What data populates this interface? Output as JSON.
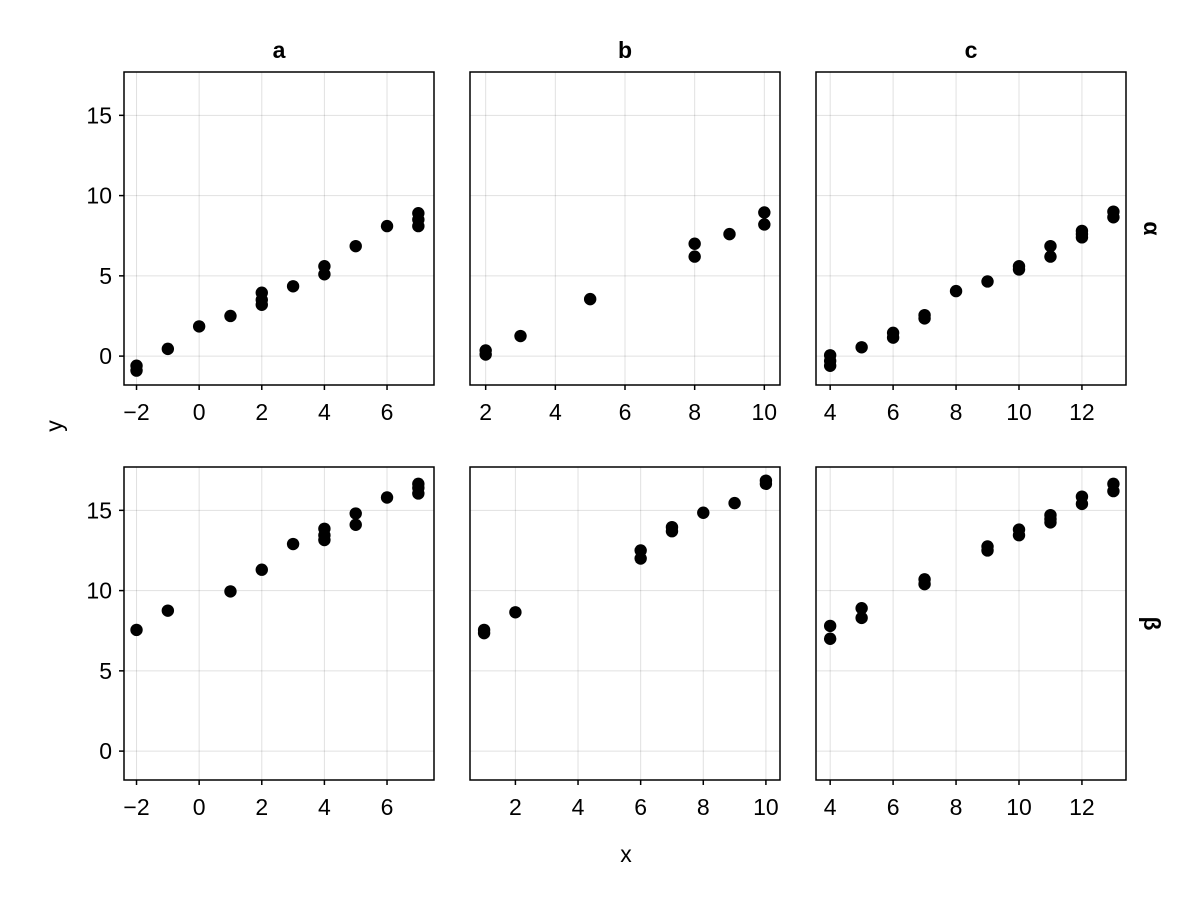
{
  "chart_data": {
    "type": "scatter",
    "xlabel": "x",
    "ylabel": "y",
    "column_titles": [
      "a",
      "b",
      "c"
    ],
    "row_titles": [
      "α",
      "β"
    ],
    "ylim": [
      -1.8,
      17.7
    ],
    "yticks": [
      0,
      5,
      10,
      15
    ],
    "grid": true,
    "point_color": "#000000",
    "panels": [
      {
        "row": "α",
        "col": "a",
        "xlim": [
          -2.4,
          7.5
        ],
        "xticks": [
          -2,
          0,
          2,
          4,
          6
        ],
        "points": [
          [
            -2,
            -0.6
          ],
          [
            -2,
            -0.9
          ],
          [
            -1,
            0.45
          ],
          [
            0,
            1.85
          ],
          [
            1,
            2.5
          ],
          [
            2,
            3.2
          ],
          [
            2,
            3.5
          ],
          [
            2,
            3.95
          ],
          [
            3,
            4.35
          ],
          [
            4,
            5.1
          ],
          [
            4,
            5.6
          ],
          [
            5,
            6.85
          ],
          [
            6,
            8.1
          ],
          [
            7,
            8.1
          ],
          [
            7,
            8.5
          ],
          [
            7,
            8.9
          ]
        ]
      },
      {
        "row": "α",
        "col": "b",
        "xlim": [
          1.55,
          10.45
        ],
        "xticks": [
          2,
          4,
          6,
          8,
          10
        ],
        "points": [
          [
            2,
            0.1
          ],
          [
            2,
            0.35
          ],
          [
            3,
            1.25
          ],
          [
            5,
            3.55
          ],
          [
            8,
            6.2
          ],
          [
            8,
            7.0
          ],
          [
            9,
            7.6
          ],
          [
            10,
            8.2
          ],
          [
            10,
            8.95
          ]
        ]
      },
      {
        "row": "α",
        "col": "c",
        "xlim": [
          3.55,
          13.4
        ],
        "xticks": [
          4,
          6,
          8,
          10,
          12
        ],
        "points": [
          [
            4,
            -0.6
          ],
          [
            4,
            -0.3
          ],
          [
            4,
            0.05
          ],
          [
            5,
            0.55
          ],
          [
            6,
            1.15
          ],
          [
            6,
            1.45
          ],
          [
            7,
            2.35
          ],
          [
            7,
            2.55
          ],
          [
            8,
            4.05
          ],
          [
            9,
            4.65
          ],
          [
            10,
            5.4
          ],
          [
            10,
            5.6
          ],
          [
            11,
            6.2
          ],
          [
            11,
            6.85
          ],
          [
            12,
            7.4
          ],
          [
            12,
            7.6
          ],
          [
            12,
            7.8
          ],
          [
            13,
            8.65
          ],
          [
            13,
            9.0
          ]
        ]
      },
      {
        "row": "β",
        "col": "a",
        "xlim": [
          -2.4,
          7.5
        ],
        "xticks": [
          -2,
          0,
          2,
          4,
          6
        ],
        "points": [
          [
            -2,
            7.55
          ],
          [
            -1,
            8.75
          ],
          [
            1,
            9.95
          ],
          [
            2,
            11.3
          ],
          [
            3,
            12.9
          ],
          [
            4,
            13.15
          ],
          [
            4,
            13.45
          ],
          [
            4,
            13.85
          ],
          [
            5,
            14.1
          ],
          [
            5,
            14.8
          ],
          [
            6,
            15.8
          ],
          [
            7,
            16.05
          ],
          [
            7,
            16.4
          ],
          [
            7,
            16.65
          ]
        ]
      },
      {
        "row": "β",
        "col": "b",
        "xlim": [
          0.55,
          10.45
        ],
        "xticks": [
          2,
          4,
          6,
          8,
          10
        ],
        "points": [
          [
            1,
            7.35
          ],
          [
            1,
            7.55
          ],
          [
            2,
            8.65
          ],
          [
            6,
            12.0
          ],
          [
            6,
            12.5
          ],
          [
            7,
            13.7
          ],
          [
            7,
            13.95
          ],
          [
            8,
            14.85
          ],
          [
            9,
            15.45
          ],
          [
            10,
            16.65
          ],
          [
            10,
            16.85
          ]
        ]
      },
      {
        "row": "β",
        "col": "c",
        "xlim": [
          3.55,
          13.4
        ],
        "xticks": [
          4,
          6,
          8,
          10,
          12
        ],
        "points": [
          [
            4,
            7.0
          ],
          [
            4,
            7.8
          ],
          [
            5,
            8.3
          ],
          [
            5,
            8.9
          ],
          [
            7,
            10.4
          ],
          [
            7,
            10.7
          ],
          [
            9,
            12.5
          ],
          [
            9,
            12.75
          ],
          [
            10,
            13.45
          ],
          [
            10,
            13.8
          ],
          [
            11,
            14.25
          ],
          [
            11,
            14.45
          ],
          [
            11,
            14.7
          ],
          [
            12,
            15.4
          ],
          [
            12,
            15.85
          ],
          [
            13,
            16.2
          ],
          [
            13,
            16.65
          ]
        ]
      }
    ]
  }
}
